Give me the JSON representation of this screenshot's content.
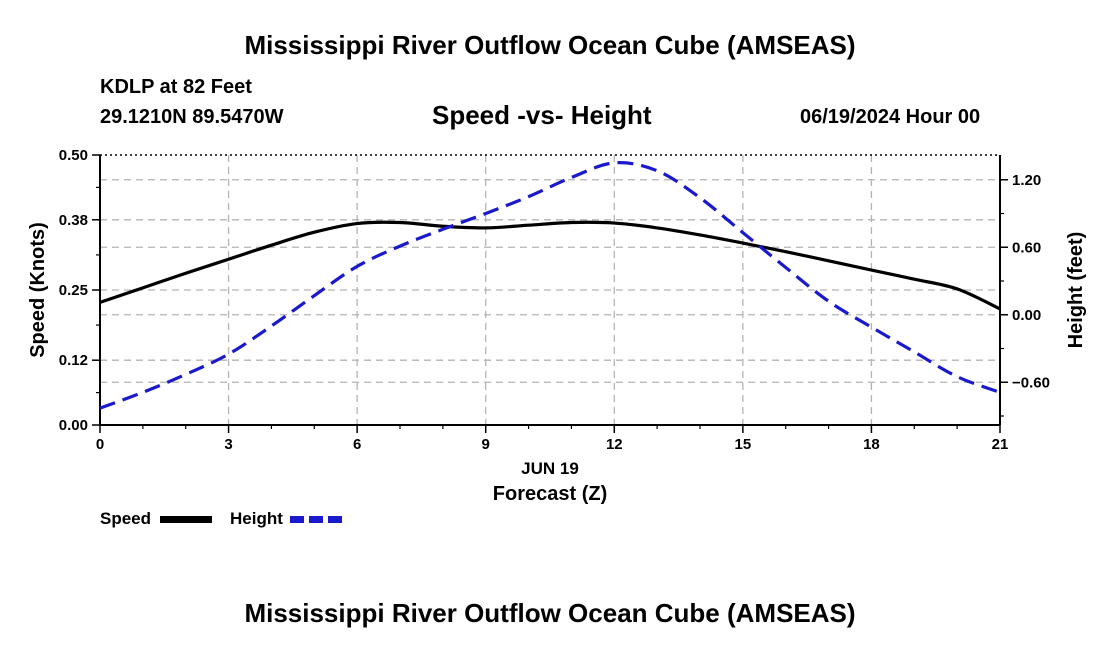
{
  "header": {
    "title": "Mississippi River Outflow Ocean Cube (AMSEAS)",
    "station": "KDLP at 82 Feet",
    "coords": "29.1210N  89.5470W",
    "subtitle": "Speed -vs- Height",
    "datetime": "06/19/2024 Hour 00"
  },
  "footer": {
    "title": "Mississippi River Outflow Ocean Cube (AMSEAS)"
  },
  "legend": {
    "speed_label": "Speed",
    "height_label": "Height"
  },
  "colors": {
    "speed": "#000000",
    "height": "#1a1acc",
    "grid": "#b4b4b4"
  },
  "chart_data": {
    "type": "line",
    "xlabel": "Forecast (Z)",
    "xdate": "JUN 19",
    "x": [
      0,
      1,
      2,
      3,
      4,
      5,
      6,
      7,
      8,
      9,
      10,
      11,
      12,
      13,
      14,
      15,
      16,
      17,
      18,
      19,
      20,
      21
    ],
    "x_ticks": [
      "0",
      "3",
      "6",
      "9",
      "12",
      "15",
      "18",
      "21"
    ],
    "xlim": [
      0,
      21
    ],
    "ylabel": "Speed (Knots)",
    "ylim": [
      0,
      0.5
    ],
    "y_ticks": [
      "0.00",
      "0.12",
      "0.25",
      "0.38",
      "0.50"
    ],
    "y2label": "Height (feet)",
    "y2lim": [
      -0.98,
      1.42
    ],
    "y2_ticks": [
      "-0.60",
      "0.00",
      "0.60",
      "1.20"
    ],
    "series": [
      {
        "name": "Speed",
        "axis": "left",
        "style": "solid",
        "values": [
          0.227,
          0.254,
          0.281,
          0.307,
          0.333,
          0.357,
          0.373,
          0.375,
          0.368,
          0.365,
          0.37,
          0.375,
          0.374,
          0.365,
          0.352,
          0.337,
          0.321,
          0.304,
          0.287,
          0.27,
          0.252,
          0.215
        ]
      },
      {
        "name": "Height",
        "axis": "right",
        "style": "dashed",
        "values": [
          -0.83,
          -0.69,
          -0.53,
          -0.35,
          -0.1,
          0.17,
          0.43,
          0.61,
          0.76,
          0.9,
          1.05,
          1.22,
          1.35,
          1.28,
          1.04,
          0.73,
          0.42,
          0.12,
          -0.11,
          -0.33,
          -0.55,
          -0.69
        ]
      }
    ]
  }
}
